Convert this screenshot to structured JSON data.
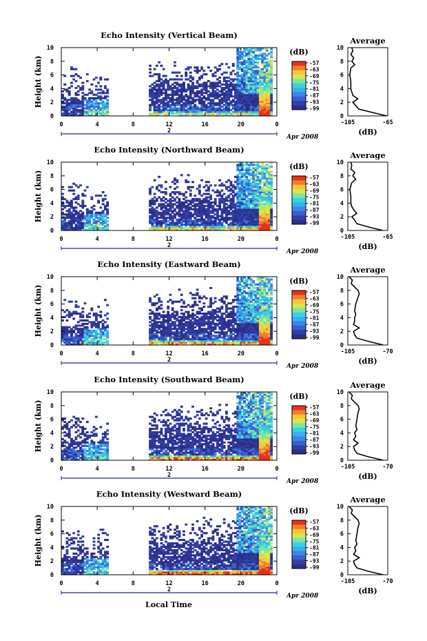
{
  "chart_data": {
    "type": "heatmap",
    "colors": [
      "#2d2f86",
      "#3040a8",
      "#3a5fd0",
      "#3c86e6",
      "#36b0ee",
      "#39d3e0",
      "#7fe6a0",
      "#d6e84a",
      "#f8c43a",
      "#f47d2a",
      "#e6321e"
    ],
    "xlabel": "Local Time",
    "ylabel": "Height (km)",
    "x_ticks": [
      "0",
      "4",
      "8",
      "12",
      "16",
      "20",
      "0"
    ],
    "x_day_label": "2",
    "date_label": "Apr 2008",
    "y_ticks": [
      "0",
      "2",
      "4",
      "6",
      "8",
      "10"
    ],
    "ylim": [
      0,
      10
    ],
    "colorbar_unit": "(dB)",
    "colorbar_ticks": [
      "-57",
      "-63",
      "-69",
      "-75",
      "-81",
      "-87",
      "-93",
      "-99"
    ],
    "average_title": "Average",
    "average_xlabel": "(dB)",
    "panels": [
      {
        "title": "Echo Intensity (Vertical Beam)",
        "avg_xticks": [
          "-105",
          "-65"
        ],
        "avg_profile": [
          [
            0,
            -66
          ],
          [
            0.5,
            -80
          ],
          [
            1,
            -94
          ],
          [
            1.5,
            -97
          ],
          [
            2,
            -100
          ],
          [
            2.5,
            -95
          ],
          [
            3,
            -100
          ],
          [
            3.5,
            -101
          ],
          [
            4,
            -102
          ],
          [
            5,
            -102
          ],
          [
            6,
            -103
          ],
          [
            7,
            -102
          ],
          [
            7.5,
            -98
          ],
          [
            8,
            -101
          ],
          [
            8.5,
            -99
          ],
          [
            9,
            -102
          ],
          [
            9.5,
            -100
          ],
          [
            10,
            -101
          ]
        ]
      },
      {
        "title": "Echo Intensity (Northward Beam)",
        "avg_xticks": [
          "-105",
          "-65"
        ],
        "avg_profile": [
          [
            0,
            -70
          ],
          [
            0.5,
            -84
          ],
          [
            1,
            -96
          ],
          [
            1.5,
            -98
          ],
          [
            2,
            -101
          ],
          [
            2.5,
            -96
          ],
          [
            3,
            -99
          ],
          [
            3.5,
            -101
          ],
          [
            4,
            -102
          ],
          [
            5,
            -102
          ],
          [
            6,
            -103
          ],
          [
            7,
            -101
          ],
          [
            7.5,
            -97
          ],
          [
            8,
            -100
          ],
          [
            8.5,
            -98
          ],
          [
            9,
            -102
          ],
          [
            9.5,
            -101
          ],
          [
            10,
            -102
          ]
        ]
      },
      {
        "title": "Echo Intensity (Eastward Beam)",
        "avg_xticks": [
          "-105",
          "-70"
        ],
        "avg_profile": [
          [
            0,
            -74
          ],
          [
            0.5,
            -86
          ],
          [
            1,
            -97
          ],
          [
            1.5,
            -99
          ],
          [
            2,
            -100
          ],
          [
            2.5,
            -95
          ],
          [
            3,
            -100
          ],
          [
            3.5,
            -99
          ],
          [
            4,
            -99
          ],
          [
            4.5,
            -98
          ],
          [
            5,
            -99
          ],
          [
            6,
            -98
          ],
          [
            7,
            -96
          ],
          [
            7.5,
            -95
          ],
          [
            8,
            -96
          ],
          [
            8.5,
            -99
          ],
          [
            9,
            -102
          ],
          [
            9.5,
            -101
          ],
          [
            10,
            -104
          ]
        ]
      },
      {
        "title": "Echo Intensity (Southward Beam)",
        "avg_xticks": [
          "-105",
          "-70"
        ],
        "avg_profile": [
          [
            0,
            -74
          ],
          [
            0.5,
            -87
          ],
          [
            1,
            -97
          ],
          [
            1.5,
            -99
          ],
          [
            2,
            -100
          ],
          [
            2.5,
            -96
          ],
          [
            3,
            -100
          ],
          [
            3.5,
            -98
          ],
          [
            4,
            -99
          ],
          [
            4.5,
            -97
          ],
          [
            5,
            -98
          ],
          [
            6,
            -97
          ],
          [
            7,
            -96
          ],
          [
            7.5,
            -95
          ],
          [
            8,
            -96
          ],
          [
            8.5,
            -99
          ],
          [
            9,
            -102
          ],
          [
            9.5,
            -101
          ],
          [
            10,
            -104
          ]
        ]
      },
      {
        "title": "Echo Intensity (Westward Beam)",
        "avg_xticks": [
          "-105",
          "-70"
        ],
        "avg_profile": [
          [
            0,
            -74
          ],
          [
            0.5,
            -87
          ],
          [
            1,
            -97
          ],
          [
            1.5,
            -99
          ],
          [
            2,
            -100
          ],
          [
            2.5,
            -95
          ],
          [
            3,
            -100
          ],
          [
            3.5,
            -98
          ],
          [
            4,
            -99
          ],
          [
            4.5,
            -97
          ],
          [
            5,
            -98
          ],
          [
            6,
            -97
          ],
          [
            7,
            -96
          ],
          [
            7.5,
            -95
          ],
          [
            8,
            -96
          ],
          [
            8.5,
            -99
          ],
          [
            9,
            -102
          ],
          [
            9.5,
            -101
          ],
          [
            10,
            -104
          ]
        ]
      }
    ]
  }
}
